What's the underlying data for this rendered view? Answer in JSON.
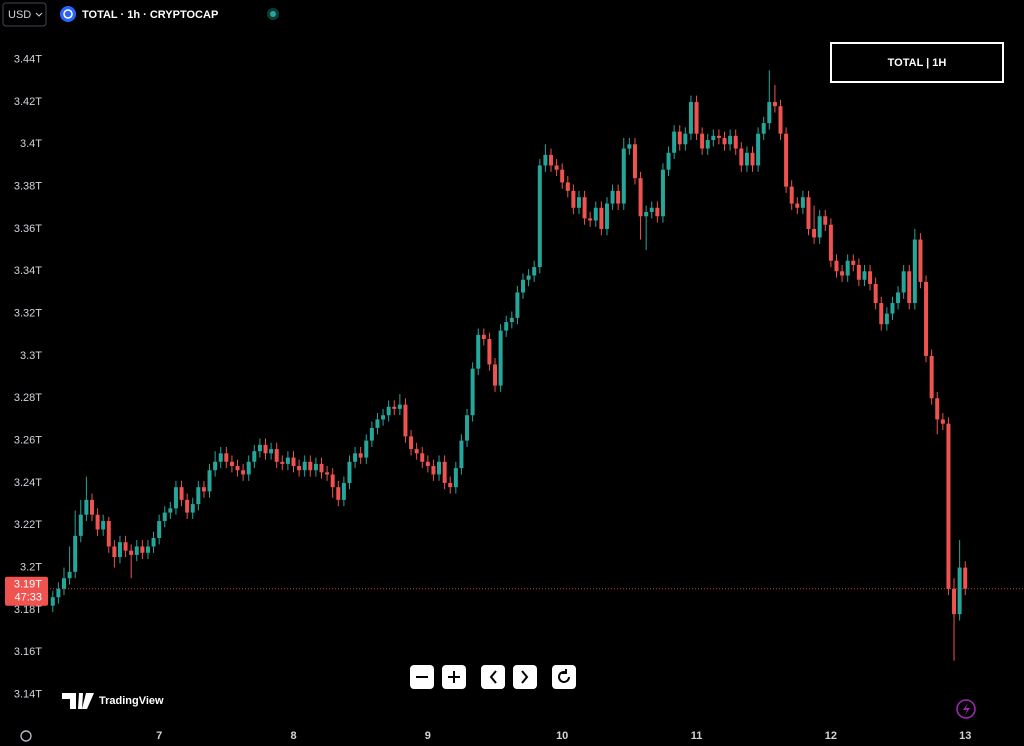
{
  "chart_data": {
    "type": "candlestick",
    "currency": "USD",
    "title": "TOTAL · 1h · CRYPTOCAP",
    "badge": "TOTAL | 1H",
    "watermark": "TradingView",
    "up_color": "#26a69a",
    "down_color": "#ef5350",
    "ylim": [
      3.128,
      3.454
    ],
    "yticks": [
      {
        "value": 3.14,
        "label": "3.14T"
      },
      {
        "value": 3.16,
        "label": "3.16T"
      },
      {
        "value": 3.18,
        "label": "3.18T"
      },
      {
        "value": 3.2,
        "label": "3.2T"
      },
      {
        "value": 3.22,
        "label": "3.22T"
      },
      {
        "value": 3.24,
        "label": "3.24T"
      },
      {
        "value": 3.26,
        "label": "3.26T"
      },
      {
        "value": 3.28,
        "label": "3.28T"
      },
      {
        "value": 3.3,
        "label": "3.3T"
      },
      {
        "value": 3.32,
        "label": "3.32T"
      },
      {
        "value": 3.34,
        "label": "3.34T"
      },
      {
        "value": 3.36,
        "label": "3.36T"
      },
      {
        "value": 3.38,
        "label": "3.38T"
      },
      {
        "value": 3.4,
        "label": "3.4T"
      },
      {
        "value": 3.42,
        "label": "3.42T"
      },
      {
        "value": 3.44,
        "label": "3.44T"
      }
    ],
    "xlim": [
      4.5,
      178.5
    ],
    "xticks": [
      {
        "value": 24,
        "label": "7"
      },
      {
        "value": 48,
        "label": "8"
      },
      {
        "value": 72,
        "label": "9"
      },
      {
        "value": 96,
        "label": "10"
      },
      {
        "value": 120,
        "label": "11"
      },
      {
        "value": 144,
        "label": "12"
      },
      {
        "value": 168,
        "label": "13"
      }
    ],
    "last_price": {
      "value": 3.19,
      "label": "3.19T"
    },
    "countdown": "47:33",
    "x": [
      5,
      6,
      7,
      8,
      9,
      10,
      11,
      12,
      13,
      14,
      15,
      16,
      17,
      18,
      19,
      20,
      21,
      22,
      23,
      24,
      25,
      26,
      27,
      28,
      29,
      30,
      31,
      32,
      33,
      34,
      35,
      36,
      37,
      38,
      39,
      40,
      41,
      42,
      43,
      44,
      45,
      46,
      47,
      48,
      49,
      50,
      51,
      52,
      53,
      54,
      55,
      56,
      57,
      58,
      59,
      60,
      61,
      62,
      63,
      64,
      65,
      66,
      67,
      68,
      69,
      70,
      71,
      72,
      73,
      74,
      75,
      76,
      77,
      78,
      79,
      80,
      81,
      82,
      83,
      84,
      85,
      86,
      87,
      88,
      89,
      90,
      91,
      92,
      93,
      94,
      95,
      96,
      97,
      98,
      99,
      100,
      101,
      102,
      103,
      104,
      105,
      106,
      107,
      108,
      109,
      110,
      111,
      112,
      113,
      114,
      115,
      116,
      117,
      118,
      119,
      120,
      121,
      122,
      123,
      124,
      125,
      126,
      127,
      128,
      129,
      130,
      131,
      132,
      133,
      134,
      135,
      136,
      137,
      138,
      139,
      140,
      141,
      142,
      143,
      144,
      145,
      146,
      147,
      148,
      149,
      150,
      151,
      152,
      153,
      154,
      155,
      156,
      157,
      158,
      159,
      160,
      161,
      162,
      163,
      164,
      165,
      166,
      167,
      168
    ],
    "candles": [
      [
        3.182,
        3.189,
        3.179,
        3.186
      ],
      [
        3.186,
        3.193,
        3.183,
        3.19
      ],
      [
        3.19,
        3.2,
        3.187,
        3.195
      ],
      [
        3.195,
        3.21,
        3.192,
        3.198
      ],
      [
        3.198,
        3.227,
        3.195,
        3.215
      ],
      [
        3.215,
        3.232,
        3.212,
        3.225
      ],
      [
        3.225,
        3.243,
        3.222,
        3.232
      ],
      [
        3.232,
        3.235,
        3.222,
        3.225
      ],
      [
        3.225,
        3.228,
        3.215,
        3.218
      ],
      [
        3.218,
        3.225,
        3.215,
        3.222
      ],
      [
        3.222,
        3.224,
        3.207,
        3.21
      ],
      [
        3.21,
        3.213,
        3.2,
        3.205
      ],
      [
        3.205,
        3.215,
        3.202,
        3.212
      ],
      [
        3.212,
        3.215,
        3.205,
        3.208
      ],
      [
        3.208,
        3.211,
        3.195,
        3.206
      ],
      [
        3.206,
        3.213,
        3.203,
        3.21
      ],
      [
        3.21,
        3.213,
        3.204,
        3.207
      ],
      [
        3.207,
        3.213,
        3.204,
        3.21
      ],
      [
        3.21,
        3.217,
        3.207,
        3.214
      ],
      [
        3.214,
        3.225,
        3.211,
        3.222
      ],
      [
        3.222,
        3.229,
        3.219,
        3.226
      ],
      [
        3.226,
        3.231,
        3.223,
        3.228
      ],
      [
        3.228,
        3.241,
        3.225,
        3.238
      ],
      [
        3.238,
        3.241,
        3.229,
        3.232
      ],
      [
        3.232,
        3.235,
        3.223,
        3.226
      ],
      [
        3.226,
        3.233,
        3.223,
        3.23
      ],
      [
        3.23,
        3.241,
        3.227,
        3.238
      ],
      [
        3.238,
        3.241,
        3.233,
        3.236
      ],
      [
        3.236,
        3.249,
        3.233,
        3.246
      ],
      [
        3.246,
        3.255,
        3.243,
        3.25
      ],
      [
        3.25,
        3.257,
        3.247,
        3.254
      ],
      [
        3.254,
        3.257,
        3.247,
        3.25
      ],
      [
        3.25,
        3.253,
        3.245,
        3.248
      ],
      [
        3.248,
        3.251,
        3.243,
        3.246
      ],
      [
        3.246,
        3.249,
        3.241,
        3.244
      ],
      [
        3.244,
        3.253,
        3.241,
        3.25
      ],
      [
        3.25,
        3.258,
        3.247,
        3.255
      ],
      [
        3.255,
        3.261,
        3.252,
        3.258
      ],
      [
        3.258,
        3.261,
        3.251,
        3.254
      ],
      [
        3.254,
        3.259,
        3.251,
        3.256
      ],
      [
        3.256,
        3.259,
        3.247,
        3.25
      ],
      [
        3.25,
        3.253,
        3.246,
        3.249
      ],
      [
        3.249,
        3.255,
        3.246,
        3.252
      ],
      [
        3.252,
        3.255,
        3.245,
        3.248
      ],
      [
        3.248,
        3.251,
        3.243,
        3.246
      ],
      [
        3.246,
        3.253,
        3.243,
        3.25
      ],
      [
        3.25,
        3.253,
        3.243,
        3.246
      ],
      [
        3.246,
        3.252,
        3.243,
        3.249
      ],
      [
        3.249,
        3.252,
        3.242,
        3.245
      ],
      [
        3.245,
        3.248,
        3.241,
        3.244
      ],
      [
        3.244,
        3.247,
        3.233,
        3.238
      ],
      [
        3.238,
        3.241,
        3.229,
        3.232
      ],
      [
        3.232,
        3.243,
        3.229,
        3.24
      ],
      [
        3.24,
        3.253,
        3.237,
        3.25
      ],
      [
        3.25,
        3.257,
        3.247,
        3.254
      ],
      [
        3.254,
        3.257,
        3.249,
        3.252
      ],
      [
        3.252,
        3.263,
        3.249,
        3.26
      ],
      [
        3.26,
        3.269,
        3.257,
        3.266
      ],
      [
        3.266,
        3.273,
        3.263,
        3.27
      ],
      [
        3.27,
        3.275,
        3.267,
        3.272
      ],
      [
        3.272,
        3.279,
        3.269,
        3.276
      ],
      [
        3.276,
        3.279,
        3.272,
        3.275
      ],
      [
        3.275,
        3.282,
        3.272,
        3.277
      ],
      [
        3.277,
        3.28,
        3.259,
        3.262
      ],
      [
        3.262,
        3.265,
        3.253,
        3.256
      ],
      [
        3.256,
        3.259,
        3.251,
        3.254
      ],
      [
        3.254,
        3.257,
        3.247,
        3.25
      ],
      [
        3.25,
        3.253,
        3.245,
        3.248
      ],
      [
        3.248,
        3.251,
        3.241,
        3.244
      ],
      [
        3.244,
        3.253,
        3.241,
        3.25
      ],
      [
        3.25,
        3.253,
        3.237,
        3.24
      ],
      [
        3.24,
        3.243,
        3.235,
        3.238
      ],
      [
        3.238,
        3.25,
        3.235,
        3.247
      ],
      [
        3.247,
        3.263,
        3.244,
        3.26
      ],
      [
        3.26,
        3.275,
        3.257,
        3.272
      ],
      [
        3.272,
        3.297,
        3.269,
        3.294
      ],
      [
        3.294,
        3.313,
        3.291,
        3.31
      ],
      [
        3.31,
        3.313,
        3.305,
        3.308
      ],
      [
        3.308,
        3.311,
        3.293,
        3.296
      ],
      [
        3.296,
        3.299,
        3.283,
        3.286
      ],
      [
        3.286,
        3.315,
        3.283,
        3.312
      ],
      [
        3.312,
        3.319,
        3.309,
        3.316
      ],
      [
        3.316,
        3.321,
        3.313,
        3.318
      ],
      [
        3.318,
        3.333,
        3.315,
        3.33
      ],
      [
        3.33,
        3.339,
        3.327,
        3.336
      ],
      [
        3.336,
        3.341,
        3.333,
        3.338
      ],
      [
        3.338,
        3.345,
        3.335,
        3.342
      ],
      [
        3.342,
        3.393,
        3.339,
        3.39
      ],
      [
        3.39,
        3.4,
        3.387,
        3.395
      ],
      [
        3.395,
        3.398,
        3.387,
        3.39
      ],
      [
        3.39,
        3.393,
        3.385,
        3.388
      ],
      [
        3.388,
        3.391,
        3.379,
        3.382
      ],
      [
        3.382,
        3.385,
        3.375,
        3.378
      ],
      [
        3.378,
        3.381,
        3.367,
        3.37
      ],
      [
        3.37,
        3.378,
        3.367,
        3.375
      ],
      [
        3.375,
        3.378,
        3.362,
        3.365
      ],
      [
        3.365,
        3.368,
        3.361,
        3.364
      ],
      [
        3.364,
        3.373,
        3.361,
        3.37
      ],
      [
        3.37,
        3.373,
        3.357,
        3.36
      ],
      [
        3.36,
        3.375,
        3.357,
        3.372
      ],
      [
        3.372,
        3.381,
        3.369,
        3.378
      ],
      [
        3.378,
        3.381,
        3.369,
        3.372
      ],
      [
        3.372,
        3.403,
        3.369,
        3.398
      ],
      [
        3.398,
        3.403,
        3.395,
        3.4
      ],
      [
        3.4,
        3.403,
        3.381,
        3.384
      ],
      [
        3.384,
        3.387,
        3.355,
        3.366
      ],
      [
        3.366,
        3.371,
        3.35,
        3.368
      ],
      [
        3.368,
        3.373,
        3.365,
        3.37
      ],
      [
        3.37,
        3.373,
        3.363,
        3.366
      ],
      [
        3.366,
        3.391,
        3.363,
        3.388
      ],
      [
        3.388,
        3.399,
        3.385,
        3.396
      ],
      [
        3.396,
        3.409,
        3.393,
        3.406
      ],
      [
        3.406,
        3.409,
        3.397,
        3.4
      ],
      [
        3.4,
        3.408,
        3.397,
        3.405
      ],
      [
        3.405,
        3.423,
        3.402,
        3.42
      ],
      [
        3.42,
        3.423,
        3.402,
        3.405
      ],
      [
        3.405,
        3.408,
        3.395,
        3.398
      ],
      [
        3.398,
        3.405,
        3.395,
        3.402
      ],
      [
        3.402,
        3.407,
        3.399,
        3.404
      ],
      [
        3.404,
        3.407,
        3.4,
        3.403
      ],
      [
        3.403,
        3.406,
        3.397,
        3.4
      ],
      [
        3.4,
        3.407,
        3.397,
        3.404
      ],
      [
        3.404,
        3.407,
        3.395,
        3.398
      ],
      [
        3.398,
        3.401,
        3.387,
        3.39
      ],
      [
        3.39,
        3.399,
        3.387,
        3.396
      ],
      [
        3.396,
        3.399,
        3.387,
        3.39
      ],
      [
        3.39,
        3.408,
        3.387,
        3.405
      ],
      [
        3.405,
        3.413,
        3.402,
        3.41
      ],
      [
        3.41,
        3.435,
        3.407,
        3.42
      ],
      [
        3.42,
        3.428,
        3.415,
        3.418
      ],
      [
        3.418,
        3.421,
        3.402,
        3.405
      ],
      [
        3.405,
        3.408,
        3.377,
        3.38
      ],
      [
        3.38,
        3.383,
        3.369,
        3.372
      ],
      [
        3.372,
        3.375,
        3.367,
        3.37
      ],
      [
        3.37,
        3.378,
        3.367,
        3.375
      ],
      [
        3.375,
        3.378,
        3.357,
        3.36
      ],
      [
        3.36,
        3.371,
        3.353,
        3.356
      ],
      [
        3.356,
        3.369,
        3.353,
        3.366
      ],
      [
        3.366,
        3.369,
        3.359,
        3.362
      ],
      [
        3.362,
        3.365,
        3.342,
        3.345
      ],
      [
        3.345,
        3.348,
        3.337,
        3.34
      ],
      [
        3.34,
        3.343,
        3.335,
        3.338
      ],
      [
        3.338,
        3.348,
        3.335,
        3.345
      ],
      [
        3.345,
        3.348,
        3.34,
        3.343
      ],
      [
        3.343,
        3.346,
        3.333,
        3.336
      ],
      [
        3.336,
        3.343,
        3.333,
        3.34
      ],
      [
        3.34,
        3.343,
        3.331,
        3.334
      ],
      [
        3.334,
        3.337,
        3.322,
        3.325
      ],
      [
        3.325,
        3.328,
        3.312,
        3.315
      ],
      [
        3.315,
        3.323,
        3.312,
        3.32
      ],
      [
        3.32,
        3.328,
        3.317,
        3.325
      ],
      [
        3.325,
        3.333,
        3.322,
        3.33
      ],
      [
        3.33,
        3.343,
        3.327,
        3.34
      ],
      [
        3.34,
        3.343,
        3.322,
        3.325
      ],
      [
        3.325,
        3.36,
        3.322,
        3.355
      ],
      [
        3.355,
        3.358,
        3.332,
        3.335
      ],
      [
        3.335,
        3.338,
        3.297,
        3.3
      ],
      [
        3.3,
        3.303,
        3.277,
        3.28
      ],
      [
        3.28,
        3.283,
        3.263,
        3.27
      ],
      [
        3.27,
        3.273,
        3.265,
        3.268
      ],
      [
        3.268,
        3.271,
        3.187,
        3.19
      ],
      [
        3.19,
        3.195,
        3.156,
        3.178
      ],
      [
        3.178,
        3.213,
        3.175,
        3.2
      ],
      [
        3.2,
        3.203,
        3.187,
        3.19
      ]
    ]
  }
}
